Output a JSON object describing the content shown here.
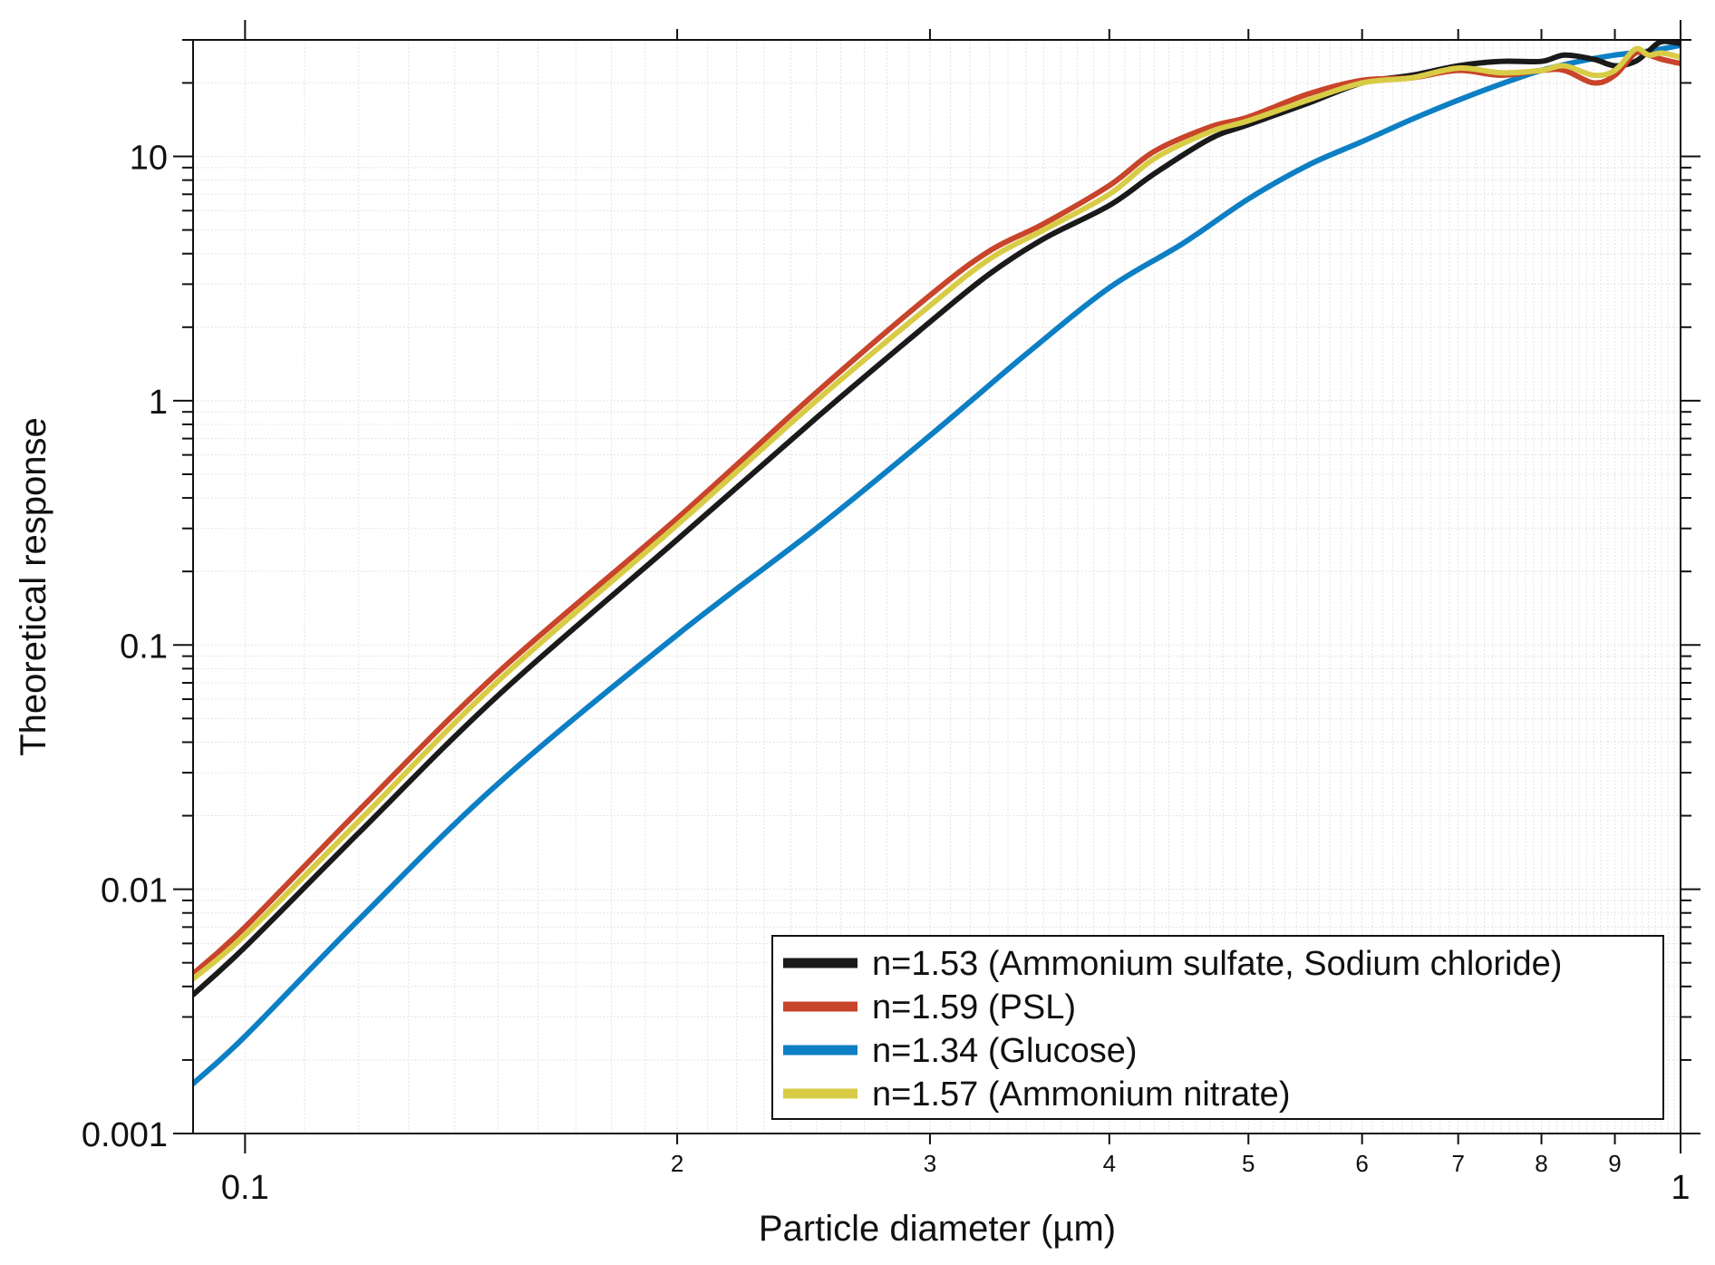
{
  "chart_data": {
    "type": "line",
    "xlabel": "Particle diameter (µm)",
    "ylabel": "Theoretical response",
    "x_scale": "log",
    "y_scale": "log",
    "xlim": [
      0.092,
      1.0
    ],
    "ylim": [
      0.001,
      30
    ],
    "grid": true,
    "legend_position": "bottom-right",
    "x_major_ticks": [
      {
        "value": 0.1,
        "label": "0.1"
      },
      {
        "value": 1.0,
        "label": "1"
      }
    ],
    "x_minor_ticks": [
      {
        "value": 0.2,
        "label": "2"
      },
      {
        "value": 0.3,
        "label": "3"
      },
      {
        "value": 0.4,
        "label": "4"
      },
      {
        "value": 0.5,
        "label": "5"
      },
      {
        "value": 0.6,
        "label": "6"
      },
      {
        "value": 0.7,
        "label": "7"
      },
      {
        "value": 0.8,
        "label": "8"
      },
      {
        "value": 0.9,
        "label": "9"
      }
    ],
    "y_major_ticks": [
      {
        "value": 0.001,
        "label": "0.001"
      },
      {
        "value": 0.01,
        "label": "0.01"
      },
      {
        "value": 0.1,
        "label": "0.1"
      },
      {
        "value": 1,
        "label": "1"
      },
      {
        "value": 10,
        "label": "10"
      }
    ],
    "series": [
      {
        "name": "n=1.53 (Ammonium sulfate, Sodium chloride)",
        "color": "#1a1a1a",
        "x": [
          0.092,
          0.1,
          0.12,
          0.15,
          0.2,
          0.25,
          0.3,
          0.33,
          0.36,
          0.4,
          0.43,
          0.47,
          0.5,
          0.55,
          0.6,
          0.65,
          0.7,
          0.75,
          0.8,
          0.83,
          0.87,
          0.9,
          0.93,
          0.95,
          0.97,
          1.0
        ],
        "y": [
          0.0037,
          0.0058,
          0.017,
          0.062,
          0.27,
          0.85,
          2.1,
          3.3,
          4.6,
          6.3,
          8.5,
          11.8,
          13.5,
          16.5,
          20.0,
          21.5,
          23.5,
          24.5,
          24.5,
          26.0,
          25.0,
          23.5,
          24.5,
          27.0,
          29.5,
          29.0
        ]
      },
      {
        "name": "n=1.59 (PSL)",
        "color": "#c8442a",
        "x": [
          0.092,
          0.1,
          0.12,
          0.15,
          0.2,
          0.25,
          0.3,
          0.33,
          0.36,
          0.4,
          0.43,
          0.47,
          0.5,
          0.55,
          0.6,
          0.65,
          0.7,
          0.75,
          0.8,
          0.83,
          0.87,
          0.9,
          0.93,
          0.95,
          0.97,
          1.0
        ],
        "y": [
          0.0045,
          0.007,
          0.021,
          0.077,
          0.33,
          1.08,
          2.7,
          4.1,
          5.3,
          7.6,
          10.5,
          13.2,
          14.5,
          18.0,
          20.5,
          21.0,
          22.5,
          21.5,
          22.5,
          22.5,
          20.0,
          21.5,
          26.5,
          26.0,
          25.0,
          24.0
        ]
      },
      {
        "name": "n=1.34 (Glucose)",
        "color": "#0d7fc4",
        "x": [
          0.092,
          0.1,
          0.12,
          0.15,
          0.2,
          0.25,
          0.3,
          0.35,
          0.4,
          0.45,
          0.5,
          0.55,
          0.6,
          0.65,
          0.7,
          0.75,
          0.8,
          0.85,
          0.9,
          0.95,
          1.0
        ],
        "y": [
          0.0016,
          0.0025,
          0.0075,
          0.027,
          0.11,
          0.3,
          0.72,
          1.55,
          2.9,
          4.4,
          6.7,
          9.2,
          11.5,
          14.2,
          17.0,
          19.8,
          22.5,
          24.5,
          26.0,
          27.0,
          28.5
        ]
      },
      {
        "name": "n=1.57 (Ammonium nitrate)",
        "color": "#d8cc46",
        "x": [
          0.092,
          0.1,
          0.12,
          0.15,
          0.2,
          0.25,
          0.3,
          0.33,
          0.36,
          0.4,
          0.43,
          0.47,
          0.5,
          0.55,
          0.6,
          0.65,
          0.7,
          0.75,
          0.8,
          0.83,
          0.87,
          0.9,
          0.93,
          0.95,
          0.97,
          1.0
        ],
        "y": [
          0.0043,
          0.0065,
          0.019,
          0.071,
          0.31,
          1.0,
          2.45,
          3.8,
          5.0,
          7.0,
          9.8,
          12.6,
          14.0,
          17.0,
          20.0,
          21.0,
          23.0,
          22.0,
          22.5,
          23.5,
          21.5,
          22.5,
          27.5,
          26.0,
          26.5,
          25.5
        ]
      }
    ]
  }
}
